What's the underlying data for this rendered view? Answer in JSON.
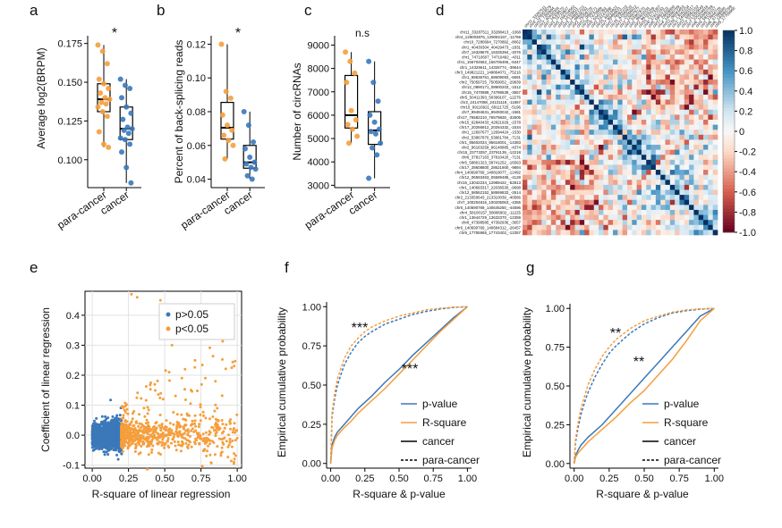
{
  "panels": {
    "a": {
      "letter": "a",
      "ylabel": "Average log2(BRPM)",
      "yticks": [
        "0.100",
        "0.125",
        "0.150",
        "0.175"
      ],
      "categories": [
        "para-cancer",
        "cancer"
      ],
      "sig": "*"
    },
    "b": {
      "letter": "b",
      "ylabel": "Percent of back-splicing reads",
      "yticks": [
        "0.04",
        "0.06",
        "0.08",
        "0.10",
        "0.12"
      ],
      "categories": [
        "para-cancer",
        "cancer"
      ],
      "sig": "*"
    },
    "c": {
      "letter": "c",
      "ylabel": "Number of circRNAs",
      "yticks": [
        "3000",
        "4000",
        "5000",
        "6000",
        "7000",
        "8000",
        "9000"
      ],
      "categories": [
        "para-cancer",
        "cancer"
      ],
      "sig": "n.s"
    },
    "d": {
      "letter": "d",
      "colorbar_ticks": [
        "1.0",
        "0.8",
        "0.6",
        "0.4",
        "0.2",
        "0",
        "-0.2",
        "-0.4",
        "-0.6",
        "-0.8",
        "-1.0"
      ]
    },
    "e": {
      "letter": "e",
      "xlabel": "R-square of linear regression",
      "ylabel": "Coefficient of linear regression",
      "xticks": [
        "0.00",
        "0.25",
        "0.50",
        "0.75",
        "1.00"
      ],
      "yticks": [
        "-0.1",
        "0.0",
        "0.1",
        "0.2",
        "0.3",
        "0.4"
      ],
      "legend": [
        "p>0.05",
        "p<0.05"
      ]
    },
    "f": {
      "letter": "f",
      "xlabel": "R-square & p-value",
      "ylabel": "Empirical cumulative probability",
      "xticks": [
        "0.00",
        "0.25",
        "0.50",
        "0.75",
        "1.00"
      ],
      "yticks": [
        "0.00",
        "0.25",
        "0.50",
        "0.75",
        "1.00"
      ],
      "legend": [
        "p-value",
        "R-square",
        "cancer",
        "para-cancer"
      ],
      "sig_upper": "***",
      "sig_lower": "***"
    },
    "g": {
      "letter": "g",
      "xlabel": "R-square & p-value",
      "ylabel": "Empirical cumulative probability",
      "xticks": [
        "0.00",
        "0.25",
        "0.50",
        "0.75",
        "1.00"
      ],
      "yticks": [
        "0.00",
        "0.25",
        "0.50",
        "0.75",
        "1.00"
      ],
      "legend": [
        "p-value",
        "R-square",
        "cancer",
        "para-cancer"
      ],
      "sig_upper": "**",
      "sig_lower": "**"
    }
  },
  "colors": {
    "blue": "#3b78b9",
    "orange": "#f59e3c",
    "pos": "#0b4f8a",
    "neg": "#8c0d1f"
  },
  "chart_data": [
    {
      "type": "box",
      "panel": "a",
      "categories": [
        "para-cancer",
        "cancer"
      ],
      "series": [
        {
          "values": [
            0.174,
            0.17,
            0.162,
            0.152,
            0.149,
            0.146,
            0.143,
            0.14,
            0.139,
            0.137,
            0.136,
            0.134,
            0.131,
            0.128,
            0.118,
            0.11,
            0.108
          ]
        },
        {
          "values": [
            0.152,
            0.148,
            0.146,
            0.14,
            0.134,
            0.13,
            0.126,
            0.121,
            0.12,
            0.119,
            0.117,
            0.114,
            0.113,
            0.11,
            0.105,
            0.095,
            0.085
          ]
        }
      ],
      "ylim": [
        0.082,
        0.18
      ]
    },
    {
      "type": "box",
      "panel": "b",
      "categories": [
        "para-cancer",
        "cancer"
      ],
      "series": [
        {
          "values": [
            0.12,
            0.092,
            0.088,
            0.078,
            0.072,
            0.069,
            0.066,
            0.063,
            0.06,
            0.052
          ]
        },
        {
          "values": [
            0.08,
            0.072,
            0.062,
            0.058,
            0.053,
            0.05,
            0.049,
            0.047,
            0.046,
            0.042,
            0.04
          ]
        }
      ],
      "ylim": [
        0.035,
        0.125
      ]
    },
    {
      "type": "box",
      "panel": "c",
      "categories": [
        "para-cancer",
        "cancer"
      ],
      "series": [
        {
          "values": [
            8700,
            8300,
            7800,
            7400,
            6200,
            5800,
            5600,
            5400,
            5100,
            4800
          ]
        },
        {
          "values": [
            8300,
            7400,
            6600,
            6000,
            5700,
            5400,
            5300,
            5200,
            4800,
            4600,
            4300,
            3300
          ]
        }
      ],
      "ylim": [
        2900,
        9400
      ]
    },
    {
      "type": "heatmap",
      "panel": "d",
      "rows": [
        "chr11_33287511_33288413_-1068",
        "chr4_129003876_129092167_-11769",
        "chr10_7280694_7270892_-8062",
        "chr1_40430304_40429473_-1831",
        "chr7_16328670_16325394_-2076",
        "chr1_74710607_74710492_-4311",
        "chr1_156704562_156706496_-6347",
        "chr1_14326611_14326774_-39644",
        "chr3_149821221_149864071_-75216",
        "chr1_68636761_68609093_-6691",
        "chr2_75059725_75059052_-29839",
        "chr12_0890171_08900203_-1512",
        "chr15_7470989_74789539_-3567",
        "chr5_50411393_50399107_-12276",
        "chr2_24147088_24131119_-11867",
        "chr15_69116921_69111725_-5196",
        "chr7_99494631_99493042_-1581",
        "chr17_76582210_76579828_-32605",
        "chr15_62840433_42821929_-1578",
        "chr17_20266912_20264332_-1534",
        "chr1_12697677_12694424_-1530",
        "chr2_53867870_53861784_-7131",
        "chr1_95602034_95618001_-14383",
        "chr2_96163259_96148885_-4374",
        "chr15_23773357_23761139_-12218",
        "chr6_37817163_37810420_-7131",
        "chr5_58801323_58741252_-16563",
        "chr17_28608800_28621900_-9894",
        "chr4_140690769_140818077_-12492",
        "chr12_06593453_06589485_-4128",
        "chr16_13042234_12989422_-52813",
        "chr1_140693317_22036530_-9698",
        "chr12_58562152_58569833_-2614",
        "chr2_213350643_213310039_-40586",
        "chr7_100204816_100205063_-4355",
        "chr6_140690769_140646250_-44596",
        "chr4_58100157_58086902_-11225",
        "chr1_13644729_13632370_-12359",
        "chr6_47398585_47392936_-3657",
        "chr6_140690769_140684312_-26457",
        "chr9_17755965_17743402_-12357"
      ],
      "range": [
        -1.0,
        1.0
      ]
    },
    {
      "type": "scatter",
      "panel": "e",
      "series": [
        {
          "name": "p>0.05",
          "x_range": [
            0,
            0.22
          ],
          "y_range": [
            -0.1,
            0.12
          ]
        },
        {
          "name": "p<0.05",
          "x_range": [
            0.2,
            1.0
          ],
          "y_range": [
            -0.05,
            0.47
          ]
        }
      ],
      "xlim": [
        -0.05,
        1.03
      ],
      "ylim": [
        -0.11,
        0.48
      ]
    },
    {
      "type": "line",
      "panel": "f",
      "x": [
        0,
        0.01,
        0.03,
        0.05,
        0.08,
        0.1,
        0.15,
        0.2,
        0.25,
        0.3,
        0.4,
        0.5,
        0.6,
        0.7,
        0.8,
        0.9,
        1.0
      ],
      "series": [
        {
          "name": "p-value cancer",
          "values": [
            0,
            0.12,
            0.17,
            0.2,
            0.23,
            0.25,
            0.3,
            0.35,
            0.39,
            0.43,
            0.52,
            0.6,
            0.69,
            0.77,
            0.85,
            0.93,
            1.0
          ]
        },
        {
          "name": "R-square cancer",
          "values": [
            0,
            0.1,
            0.15,
            0.18,
            0.21,
            0.23,
            0.27,
            0.32,
            0.36,
            0.4,
            0.48,
            0.57,
            0.66,
            0.75,
            0.84,
            0.92,
            1.0
          ]
        },
        {
          "name": "p-value para-cancer",
          "values": [
            0,
            0.3,
            0.42,
            0.5,
            0.58,
            0.63,
            0.71,
            0.77,
            0.81,
            0.84,
            0.89,
            0.92,
            0.95,
            0.97,
            0.985,
            0.995,
            1.0
          ]
        },
        {
          "name": "R-square para-cancer",
          "values": [
            0,
            0.32,
            0.45,
            0.54,
            0.62,
            0.67,
            0.75,
            0.8,
            0.84,
            0.87,
            0.91,
            0.94,
            0.96,
            0.98,
            0.99,
            0.997,
            1.0
          ]
        }
      ],
      "xlim": [
        -0.03,
        1.03
      ],
      "ylim": [
        -0.03,
        1.03
      ]
    },
    {
      "type": "line",
      "panel": "g",
      "x": [
        0,
        0.01,
        0.03,
        0.05,
        0.08,
        0.1,
        0.15,
        0.2,
        0.25,
        0.3,
        0.4,
        0.5,
        0.6,
        0.7,
        0.8,
        0.9,
        1.0
      ],
      "series": [
        {
          "name": "p-value cancer",
          "values": [
            0,
            0.05,
            0.09,
            0.12,
            0.15,
            0.17,
            0.21,
            0.25,
            0.3,
            0.35,
            0.45,
            0.55,
            0.65,
            0.75,
            0.85,
            0.95,
            1.0
          ]
        },
        {
          "name": "R-square cancer",
          "values": [
            0,
            0.04,
            0.07,
            0.09,
            0.12,
            0.14,
            0.18,
            0.22,
            0.26,
            0.3,
            0.39,
            0.47,
            0.57,
            0.67,
            0.79,
            0.92,
            1.0
          ]
        },
        {
          "name": "p-value para-cancer",
          "values": [
            0,
            0.14,
            0.24,
            0.32,
            0.41,
            0.46,
            0.56,
            0.64,
            0.71,
            0.76,
            0.84,
            0.9,
            0.94,
            0.97,
            0.985,
            0.995,
            1.0
          ]
        },
        {
          "name": "R-square para-cancer",
          "values": [
            0,
            0.16,
            0.27,
            0.36,
            0.45,
            0.51,
            0.61,
            0.69,
            0.75,
            0.8,
            0.87,
            0.92,
            0.95,
            0.975,
            0.99,
            0.997,
            1.0
          ]
        }
      ],
      "xlim": [
        -0.03,
        1.03
      ],
      "ylim": [
        -0.03,
        1.03
      ]
    }
  ]
}
